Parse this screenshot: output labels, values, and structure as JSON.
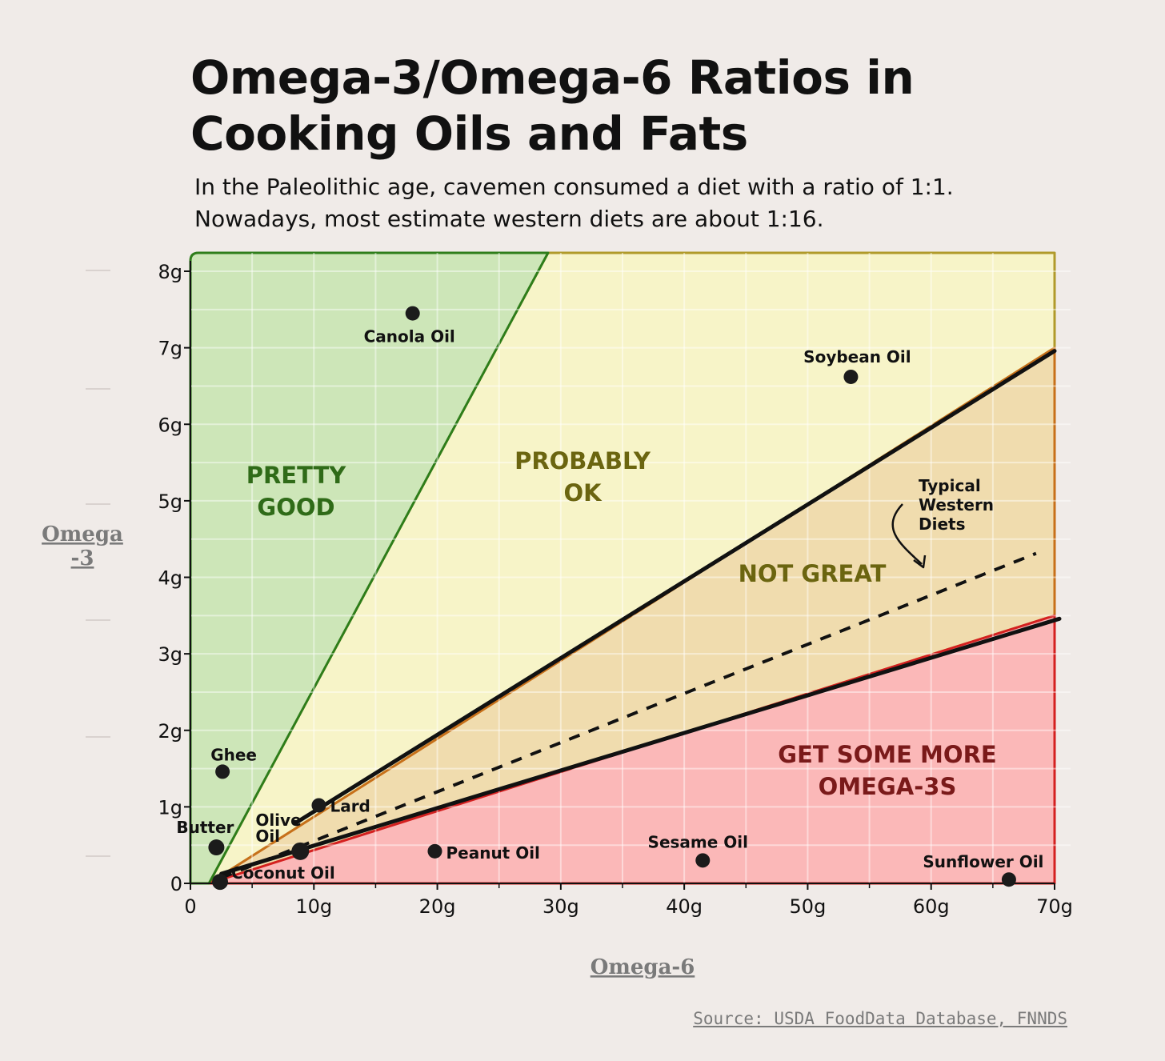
{
  "title": "Omega-3/Omega-6 Ratios in Cooking Oils and Fats",
  "subtitle": "In the Paleolithic age, cavemen consumed a diet with a ratio of 1:1. Nowadays, most estimate western diets are about 1:16.",
  "source": "Source: USDA FoodData Database, FNNDS",
  "chart_data": {
    "type": "scatter",
    "title": "Omega-3/Omega-6 Ratios in Cooking Oils and Fats",
    "xlabel": "Omega-6",
    "ylabel": "Omega\n-3",
    "xlim": [
      0,
      70
    ],
    "ylim": [
      0,
      8
    ],
    "x_ticks": [
      {
        "value": 0,
        "label": "0"
      },
      {
        "value": 10,
        "label": "10g"
      },
      {
        "value": 20,
        "label": "20g"
      },
      {
        "value": 30,
        "label": "30g"
      },
      {
        "value": 40,
        "label": "40g"
      },
      {
        "value": 50,
        "label": "50g"
      },
      {
        "value": 60,
        "label": "60g"
      },
      {
        "value": 70,
        "label": "70g"
      }
    ],
    "y_ticks": [
      {
        "value": 0,
        "label": "0"
      },
      {
        "value": 1,
        "label": "1g"
      },
      {
        "value": 2,
        "label": "2g"
      },
      {
        "value": 3,
        "label": "3g"
      },
      {
        "value": 4,
        "label": "4g"
      },
      {
        "value": 5,
        "label": "5g"
      },
      {
        "value": 6,
        "label": "6g"
      },
      {
        "value": 7,
        "label": "7g"
      },
      {
        "value": 8,
        "label": "8g"
      }
    ],
    "grid": true,
    "regions": [
      {
        "name": "pretty-good",
        "label": [
          "PRETTY",
          "GOOD"
        ],
        "ratio_min": 0.3,
        "color": "#cde6b8",
        "stroke": "#2e7d1a",
        "text_color": "#2f6b18"
      },
      {
        "name": "probably-ok",
        "label": [
          "PROBABLY",
          "OK"
        ],
        "ratio_min": 0.1,
        "ratio_max": 0.3,
        "color": "#f7f4c8",
        "stroke": "#b09a2a",
        "text_color": "#6b6510"
      },
      {
        "name": "not-great",
        "label": [
          "NOT GREAT"
        ],
        "ratio_min": 0.05,
        "ratio_max": 0.1,
        "color": "#f0dcae",
        "stroke": "#c7701a",
        "text_color": "#6b6510"
      },
      {
        "name": "get-more-omega-3s",
        "label": [
          "GET SOME MORE",
          "OMEGA-3S"
        ],
        "ratio_max": 0.05,
        "color": "#fbb8b8",
        "stroke": "#d42020",
        "text_color": "#7a1a1a"
      }
    ],
    "reference_line": {
      "label": [
        "Typical",
        "Western",
        "Diets"
      ],
      "ratio": 0.0625,
      "style": "dashed"
    },
    "points": [
      {
        "name": "Canola Oil",
        "x": 18.0,
        "y": 7.45
      },
      {
        "name": "Soybean Oil",
        "x": 53.5,
        "y": 6.62
      },
      {
        "name": "Ghee",
        "x": 2.6,
        "y": 1.46
      },
      {
        "name": "Lard",
        "x": 10.4,
        "y": 1.02
      },
      {
        "name": "Butter",
        "x": 2.1,
        "y": 0.47
      },
      {
        "name": "Olive Oil",
        "x": 8.9,
        "y": 0.42
      },
      {
        "name": "Coconut Oil",
        "x": 2.4,
        "y": 0.02
      },
      {
        "name": "Peanut Oil",
        "x": 19.8,
        "y": 0.42
      },
      {
        "name": "Sesame Oil",
        "x": 41.5,
        "y": 0.3
      },
      {
        "name": "Sunflower Oil",
        "x": 66.3,
        "y": 0.05
      }
    ]
  }
}
